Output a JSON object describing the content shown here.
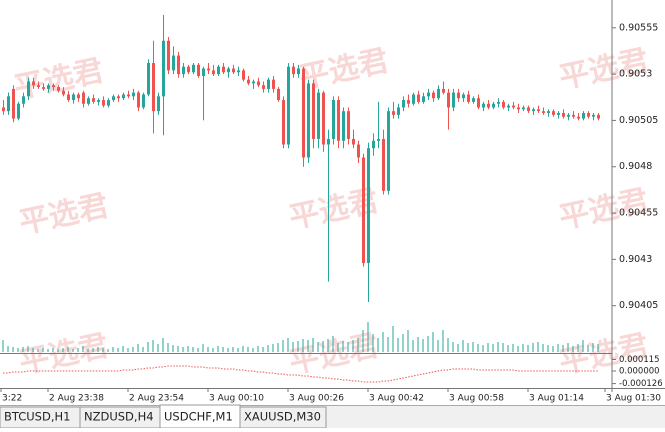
{
  "chart_data": {
    "type": "candlestick",
    "watermark": "平选君",
    "up_color": "#26a69a",
    "down_color": "#ef5350",
    "ylim": [
      0.9038,
      0.9057
    ],
    "yticks": [
      0.90555,
      0.9053,
      0.90505,
      0.9048,
      0.90455,
      0.9043,
      0.90405
    ],
    "time_labels": [
      "3:22",
      "2 Aug 23:38",
      "2 Aug 23:54",
      "3 Aug 00:10",
      "3 Aug 00:26",
      "3 Aug 00:42",
      "3 Aug 00:58",
      "3 Aug 01:14",
      "3 Aug 01:30"
    ],
    "ohlc": [
      [
        0.90512,
        0.90516,
        0.90508,
        0.9051
      ],
      [
        0.9051,
        0.9052,
        0.90508,
        0.90518
      ],
      [
        0.90522,
        0.90524,
        0.90504,
        0.90506
      ],
      [
        0.90506,
        0.90515,
        0.90505,
        0.90514
      ],
      [
        0.90514,
        0.9052,
        0.90512,
        0.90518
      ],
      [
        0.90518,
        0.90528,
        0.90516,
        0.90526
      ],
      [
        0.90526,
        0.90528,
        0.90522,
        0.90524
      ],
      [
        0.90524,
        0.90526,
        0.90522,
        0.90523
      ],
      [
        0.90523,
        0.90525,
        0.90521,
        0.90522
      ],
      [
        0.90522,
        0.90525,
        0.9052,
        0.90524
      ],
      [
        0.90524,
        0.90525,
        0.90521,
        0.90523
      ],
      [
        0.90523,
        0.90524,
        0.9052,
        0.90521
      ],
      [
        0.90521,
        0.90523,
        0.90518,
        0.90519
      ],
      [
        0.90519,
        0.90521,
        0.90515,
        0.90516
      ],
      [
        0.90516,
        0.9052,
        0.90514,
        0.90519
      ],
      [
        0.90519,
        0.9052,
        0.90515,
        0.90517
      ],
      [
        0.9052,
        0.90521,
        0.90512,
        0.90514
      ],
      [
        0.90514,
        0.90518,
        0.90513,
        0.90517
      ],
      [
        0.90517,
        0.90519,
        0.90514,
        0.90515
      ],
      [
        0.90515,
        0.90517,
        0.90513,
        0.90516
      ],
      [
        0.90516,
        0.90518,
        0.90512,
        0.90513
      ],
      [
        0.90513,
        0.90517,
        0.90512,
        0.90516
      ],
      [
        0.90516,
        0.90519,
        0.90515,
        0.90518
      ],
      [
        0.90518,
        0.90519,
        0.90515,
        0.90517
      ],
      [
        0.90517,
        0.9052,
        0.90516,
        0.90519
      ],
      [
        0.90519,
        0.90521,
        0.90517,
        0.90518
      ],
      [
        0.90518,
        0.90522,
        0.90516,
        0.9052
      ],
      [
        0.9052,
        0.90521,
        0.9051,
        0.90512
      ],
      [
        0.90512,
        0.9052,
        0.90511,
        0.90519
      ],
      [
        0.90519,
        0.90538,
        0.90518,
        0.90536
      ],
      [
        0.90536,
        0.90548,
        0.90498,
        0.9051
      ],
      [
        0.9051,
        0.9052,
        0.90508,
        0.90518
      ],
      [
        0.90518,
        0.90562,
        0.90497,
        0.90548
      ],
      [
        0.90548,
        0.9055,
        0.9053,
        0.90532
      ],
      [
        0.90532,
        0.90545,
        0.9053,
        0.9054
      ],
      [
        0.9054,
        0.90542,
        0.90528,
        0.9053
      ],
      [
        0.9053,
        0.90536,
        0.90528,
        0.90534
      ],
      [
        0.90534,
        0.90535,
        0.9053,
        0.90531
      ],
      [
        0.90531,
        0.90536,
        0.9053,
        0.90535
      ],
      [
        0.90535,
        0.90536,
        0.90528,
        0.90529
      ],
      [
        0.90529,
        0.90534,
        0.90505,
        0.90533
      ],
      [
        0.90533,
        0.90536,
        0.9053,
        0.90532
      ],
      [
        0.90532,
        0.90535,
        0.90529,
        0.9053
      ],
      [
        0.9053,
        0.90535,
        0.90529,
        0.90534
      ],
      [
        0.90534,
        0.90536,
        0.9053,
        0.90531
      ],
      [
        0.90531,
        0.90534,
        0.90528,
        0.90533
      ],
      [
        0.90533,
        0.90535,
        0.9053,
        0.90531
      ],
      [
        0.90531,
        0.90534,
        0.90529,
        0.90532
      ],
      [
        0.90532,
        0.90533,
        0.90526,
        0.90527
      ],
      [
        0.90527,
        0.90529,
        0.90524,
        0.90525
      ],
      [
        0.90525,
        0.90527,
        0.90522,
        0.90526
      ],
      [
        0.90526,
        0.90528,
        0.90523,
        0.90524
      ],
      [
        0.90524,
        0.90526,
        0.9052,
        0.90522
      ],
      [
        0.90522,
        0.90528,
        0.9052,
        0.90527
      ],
      [
        0.90527,
        0.90529,
        0.9052,
        0.90522
      ],
      [
        0.90522,
        0.90523,
        0.90515,
        0.90516
      ],
      [
        0.90516,
        0.90518,
        0.9049,
        0.90492
      ],
      [
        0.90492,
        0.90536,
        0.9049,
        0.90534
      ],
      [
        0.90534,
        0.90536,
        0.90528,
        0.9053
      ],
      [
        0.9053,
        0.90535,
        0.90528,
        0.90533
      ],
      [
        0.90533,
        0.90534,
        0.9048,
        0.90485
      ],
      [
        0.90485,
        0.90527,
        0.90482,
        0.90525
      ],
      [
        0.90525,
        0.90527,
        0.9049,
        0.90495
      ],
      [
        0.90495,
        0.90522,
        0.9049,
        0.9052
      ],
      [
        0.9052,
        0.90521,
        0.90488,
        0.90492
      ],
      [
        0.90492,
        0.905,
        0.90418,
        0.90495
      ],
      [
        0.90495,
        0.90518,
        0.90492,
        0.90516
      ],
      [
        0.90516,
        0.90518,
        0.9049,
        0.90494
      ],
      [
        0.90494,
        0.90512,
        0.9049,
        0.9051
      ],
      [
        0.9051,
        0.90512,
        0.90492,
        0.90495
      ],
      [
        0.90495,
        0.905,
        0.9049,
        0.90492
      ],
      [
        0.90492,
        0.90494,
        0.90482,
        0.90485
      ],
      [
        0.90485,
        0.90487,
        0.90426,
        0.90428
      ],
      [
        0.90428,
        0.90493,
        0.90407,
        0.9049
      ],
      [
        0.9049,
        0.90498,
        0.90486,
        0.90494
      ],
      [
        0.90494,
        0.90515,
        0.9049,
        0.90495
      ],
      [
        0.90495,
        0.905,
        0.90465,
        0.90467
      ],
      [
        0.90467,
        0.90512,
        0.90465,
        0.9051
      ],
      [
        0.9051,
        0.90515,
        0.90506,
        0.90508
      ],
      [
        0.90508,
        0.90514,
        0.90506,
        0.90512
      ],
      [
        0.90512,
        0.90518,
        0.9051,
        0.90516
      ],
      [
        0.90516,
        0.90519,
        0.90512,
        0.90514
      ],
      [
        0.90514,
        0.9052,
        0.90513,
        0.90519
      ],
      [
        0.90519,
        0.90521,
        0.90514,
        0.90515
      ],
      [
        0.90515,
        0.9052,
        0.90514,
        0.90518
      ],
      [
        0.90518,
        0.90522,
        0.90516,
        0.9052
      ],
      [
        0.9052,
        0.90521,
        0.90515,
        0.90517
      ],
      [
        0.90517,
        0.90524,
        0.90516,
        0.90522
      ],
      [
        0.90522,
        0.90526,
        0.90519,
        0.9052
      ],
      [
        0.9052,
        0.90522,
        0.905,
        0.90512
      ],
      [
        0.90512,
        0.90522,
        0.9051,
        0.9052
      ],
      [
        0.9052,
        0.90522,
        0.90515,
        0.90517
      ],
      [
        0.90517,
        0.9052,
        0.90515,
        0.90519
      ],
      [
        0.90519,
        0.90521,
        0.90514,
        0.90515
      ],
      [
        0.90515,
        0.90518,
        0.90514,
        0.90517
      ],
      [
        0.90517,
        0.90519,
        0.90511,
        0.90512
      ],
      [
        0.90512,
        0.90515,
        0.9051,
        0.90514
      ],
      [
        0.90514,
        0.90516,
        0.90511,
        0.90512
      ],
      [
        0.90512,
        0.90515,
        0.90511,
        0.90514
      ],
      [
        0.90514,
        0.90517,
        0.90512,
        0.90515
      ],
      [
        0.90515,
        0.90516,
        0.90511,
        0.90512
      ],
      [
        0.90512,
        0.90514,
        0.9051,
        0.90513
      ],
      [
        0.90513,
        0.90515,
        0.90511,
        0.90512
      ],
      [
        0.90512,
        0.90514,
        0.90509,
        0.90511
      ],
      [
        0.90511,
        0.90513,
        0.9051,
        0.90512
      ],
      [
        0.90512,
        0.90513,
        0.90509,
        0.9051
      ],
      [
        0.9051,
        0.90512,
        0.90508,
        0.90511
      ],
      [
        0.90511,
        0.90513,
        0.90509,
        0.9051
      ],
      [
        0.9051,
        0.90512,
        0.90508,
        0.90509
      ],
      [
        0.90509,
        0.90511,
        0.90507,
        0.9051
      ],
      [
        0.9051,
        0.90511,
        0.90507,
        0.90508
      ],
      [
        0.90508,
        0.9051,
        0.90506,
        0.90509
      ],
      [
        0.90509,
        0.90511,
        0.90506,
        0.90507
      ],
      [
        0.90507,
        0.90509,
        0.90505,
        0.90508
      ],
      [
        0.90508,
        0.9051,
        0.90506,
        0.90507
      ],
      [
        0.90507,
        0.90509,
        0.90505,
        0.90506
      ],
      [
        0.90506,
        0.9051,
        0.90505,
        0.90509
      ],
      [
        0.90509,
        0.9051,
        0.90506,
        0.90507
      ],
      [
        0.90507,
        0.90509,
        0.90505,
        0.90508
      ],
      [
        0.90508,
        0.90509,
        0.90505,
        0.90506
      ]
    ],
    "volume_color": "#26a69a",
    "volumes": [
      12,
      6,
      5,
      4,
      5,
      6,
      4,
      3,
      4,
      3,
      4,
      3,
      4,
      5,
      3,
      4,
      6,
      3,
      4,
      5,
      4,
      3,
      5,
      4,
      6,
      4,
      5,
      8,
      5,
      10,
      12,
      8,
      14,
      9,
      7,
      6,
      5,
      6,
      5,
      4,
      8,
      5,
      4,
      6,
      5,
      4,
      5,
      4,
      6,
      5,
      4,
      6,
      5,
      7,
      8,
      9,
      12,
      14,
      10,
      11,
      13,
      12,
      14,
      10,
      11,
      13,
      16,
      9,
      11,
      10,
      12,
      14,
      22,
      30,
      18,
      14,
      20,
      15,
      26,
      14,
      18,
      22,
      12,
      15,
      13,
      16,
      20,
      12,
      22,
      14,
      10,
      8,
      12,
      9,
      10,
      8,
      7,
      9,
      8,
      10,
      9,
      7,
      8,
      6,
      8,
      7,
      9,
      10,
      8,
      7,
      6,
      8,
      7,
      9,
      6,
      8,
      12,
      7,
      9,
      8
    ],
    "indicator": {
      "color": "#ef5350",
      "ylim": [
        -0.00015,
        0.00015
      ],
      "yticks": [
        {
          "value": 0.000115,
          "label": "0.000115"
        },
        {
          "value": 0,
          "label": "0.000000"
        },
        {
          "value": -0.000126,
          "label": "-0.000126"
        }
      ],
      "values": [
        -2e-05,
        -2e-05,
        -1e-05,
        -1e-05,
        -1e-05,
        0,
        0,
        0,
        0,
        0,
        0,
        0,
        0,
        0,
        0,
        0,
        0,
        0,
        0,
        0,
        0,
        0,
        0,
        0,
        1e-05,
        1e-05,
        1e-05,
        2e-05,
        2e-05,
        3e-05,
        3e-05,
        4e-05,
        4e-05,
        5e-05,
        5e-05,
        5e-05,
        5e-05,
        5e-05,
        4e-05,
        4e-05,
        4e-05,
        3e-05,
        3e-05,
        3e-05,
        2e-05,
        2e-05,
        2e-05,
        1e-05,
        1e-05,
        0,
        0,
        -1e-05,
        -1e-05,
        -2e-05,
        -2e-05,
        -3e-05,
        -3e-05,
        -4e-05,
        -4e-05,
        -4e-05,
        -5e-05,
        -5e-05,
        -6e-05,
        -6e-05,
        -7e-05,
        -7e-05,
        -8e-05,
        -8e-05,
        -9e-05,
        -9e-05,
        -0.0001,
        -0.0001,
        -0.00011,
        -0.00011,
        -0.00011,
        -0.00011,
        -0.0001,
        -0.0001,
        -9e-05,
        -8e-05,
        -7e-05,
        -6e-05,
        -5e-05,
        -4e-05,
        -3e-05,
        -2e-05,
        -1e-05,
        0,
        1e-05,
        1e-05,
        2e-05,
        2e-05,
        2e-05,
        2e-05,
        2e-05,
        1e-05,
        1e-05,
        1e-05,
        1e-05,
        1e-05,
        1e-05,
        1e-05,
        1e-05,
        0,
        0,
        0,
        0,
        0,
        0,
        0,
        0,
        0,
        0,
        0,
        0,
        0,
        0,
        0,
        0,
        0
      ]
    }
  },
  "tabs": [
    "BTCUSD,H1",
    "NZDUSD,H4",
    "USDCHF,M1",
    "XAUUSD,M30"
  ],
  "active_tab": "USDCHF,M1"
}
